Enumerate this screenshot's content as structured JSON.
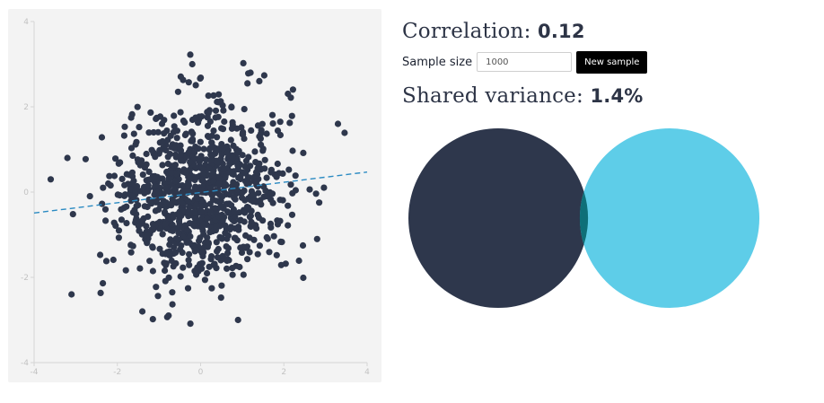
{
  "correlation": {
    "label": "Correlation:",
    "value": "0.12"
  },
  "controls": {
    "sample_size_label": "Sample size",
    "sample_size_value": "1000",
    "new_sample_label": "New sample"
  },
  "shared_variance": {
    "label": "Shared variance:",
    "value": "1.4%"
  },
  "colors": {
    "points": "#2e374c",
    "regression_line": "#2a8ac2",
    "circle_x": "#2e374c",
    "circle_y": "#5ecde8",
    "overlap": "#0e6f78",
    "axis": "#d6d6d6",
    "tick_text": "#c2c2c2",
    "panel_bg": "#f3f3f3"
  },
  "chart_data": {
    "type": "scatter",
    "n": 1000,
    "correlation": 0.12,
    "xlim": [
      -4,
      4
    ],
    "ylim": [
      -4,
      4
    ],
    "xticks": [
      "-4",
      "-2",
      "0",
      "2",
      "4"
    ],
    "yticks": [
      "4",
      "2",
      "0",
      "-2",
      "-4"
    ],
    "regression_line": {
      "style": "dashed",
      "x": [
        -4,
        4
      ],
      "y": [
        -0.49,
        0.47
      ]
    },
    "grid": false,
    "visible_outliers": [
      {
        "x": 3.3,
        "y": 1.6
      },
      {
        "x": -3.6,
        "y": 0.3
      },
      {
        "x": -3.1,
        "y": -2.4
      },
      {
        "x": -0.2,
        "y": 3.0
      },
      {
        "x": 1.2,
        "y": 2.8
      },
      {
        "x": 0.9,
        "y": -3.0
      },
      {
        "x": -1.4,
        "y": -2.8
      },
      {
        "x": 2.8,
        "y": -1.1
      },
      {
        "x": -3.2,
        "y": 0.8
      }
    ]
  },
  "venn": {
    "labels": [],
    "shared_fraction": 0.014
  }
}
